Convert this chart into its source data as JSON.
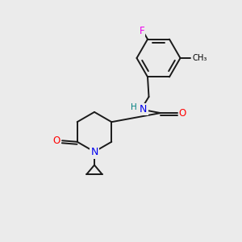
{
  "background_color": "#ebebeb",
  "atom_colors": {
    "C": "#000000",
    "N": "#0000ee",
    "O": "#ff0000",
    "F": "#ee00ee",
    "H": "#008080"
  },
  "figsize": [
    3.0,
    3.0
  ],
  "dpi": 100,
  "xlim": [
    0,
    10
  ],
  "ylim": [
    0,
    10
  ]
}
